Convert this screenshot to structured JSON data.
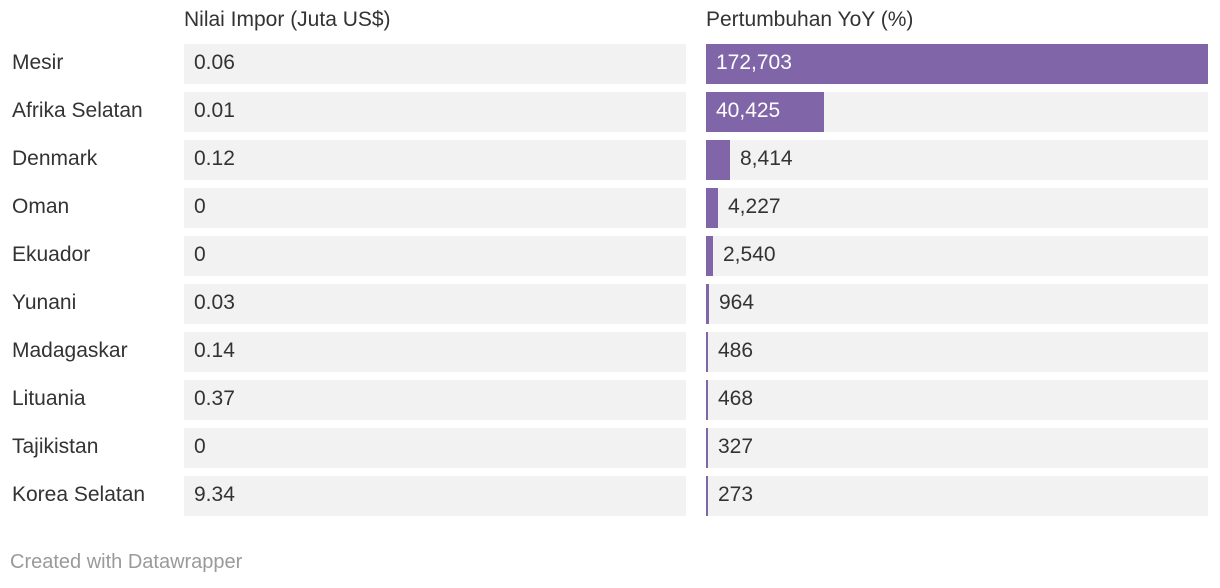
{
  "chart_data": {
    "type": "table",
    "columns": [
      {
        "header": "Nilai Impor (Juta US$)"
      },
      {
        "header": "Pertumbuhan YoY (%)",
        "bar": true,
        "bar_color": "#8066a8",
        "max": 172703
      }
    ],
    "rows": [
      {
        "country": "Mesir",
        "import": "0.06",
        "growth": 172703,
        "growth_label": "172,703"
      },
      {
        "country": "Afrika Selatan",
        "import": "0.01",
        "growth": 40425,
        "growth_label": "40,425"
      },
      {
        "country": "Denmark",
        "import": "0.12",
        "growth": 8414,
        "growth_label": "8,414"
      },
      {
        "country": "Oman",
        "import": "0",
        "growth": 4227,
        "growth_label": "4,227"
      },
      {
        "country": "Ekuador",
        "import": "0",
        "growth": 2540,
        "growth_label": "2,540"
      },
      {
        "country": "Yunani",
        "import": "0.03",
        "growth": 964,
        "growth_label": "964"
      },
      {
        "country": "Madagaskar",
        "import": "0.14",
        "growth": 486,
        "growth_label": "486"
      },
      {
        "country": "Lituania",
        "import": "0.37",
        "growth": 468,
        "growth_label": "468"
      },
      {
        "country": "Tajikistan",
        "import": "0",
        "growth": 327,
        "growth_label": "327"
      },
      {
        "country": "Korea Selatan",
        "import": "9.34",
        "growth": 273,
        "growth_label": "273"
      }
    ]
  },
  "colors": {
    "bar": "#8066a8",
    "cell_background": "#f2f2f2",
    "text": "#333333",
    "footer_text": "#9a9a9a"
  },
  "footer": {
    "credit": "Created with Datawrapper"
  }
}
